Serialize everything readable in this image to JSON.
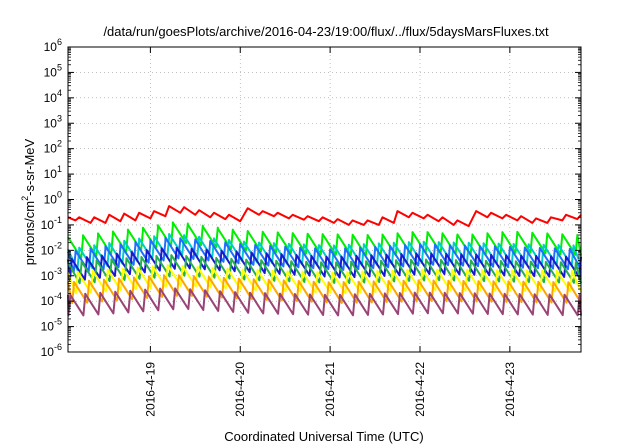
{
  "chart_data": {
    "type": "line",
    "title": "/data/run/goesPlots/archive/2016-04-23/19:00/flux/../flux/5daysMarsFluxes.txt",
    "xlabel": "Coordinated Universal Time (UTC)",
    "ylabel": {
      "prefix": "protons/cm",
      "sup": "2",
      "suffix": "-s-sr-MeV"
    },
    "yscale": "log",
    "ylim": [
      1e-06,
      1000000.0
    ],
    "yticks": [
      {
        "base": "10",
        "exp": "-6",
        "value": 1e-06
      },
      {
        "base": "10",
        "exp": "-5",
        "value": 1e-05
      },
      {
        "base": "10",
        "exp": "-4",
        "value": 0.0001
      },
      {
        "base": "10",
        "exp": "-3",
        "value": 0.001
      },
      {
        "base": "10",
        "exp": "-2",
        "value": 0.01
      },
      {
        "base": "10",
        "exp": "-1",
        "value": 0.1
      },
      {
        "base": "10",
        "exp": "0",
        "value": 1
      },
      {
        "base": "10",
        "exp": "1",
        "value": 10.0
      },
      {
        "base": "10",
        "exp": "2",
        "value": 100.0
      },
      {
        "base": "10",
        "exp": "3",
        "value": 1000.0
      },
      {
        "base": "10",
        "exp": "4",
        "value": 10000.0
      },
      {
        "base": "10",
        "exp": "5",
        "value": 100000.0
      },
      {
        "base": "10",
        "exp": "6",
        "value": 1000000.0
      }
    ],
    "xlim": [
      "2016-04-18T02:00",
      "2016-04-23T19:00"
    ],
    "xticks": [
      {
        "label": "2016-4-19",
        "value": "2016-04-19T00:00"
      },
      {
        "label": "2016-4-20",
        "value": "2016-04-20T00:00"
      },
      {
        "label": "2016-4-21",
        "value": "2016-04-21T00:00"
      },
      {
        "label": "2016-4-22",
        "value": "2016-04-22T00:00"
      },
      {
        "label": "2016-4-23",
        "value": "2016-04-23T00:00"
      }
    ],
    "grid": true,
    "legend": "none",
    "series": [
      {
        "color": "#ff0000",
        "sawtooth": false,
        "values": [
          [
            "2016-04-18T02:00",
            0.2
          ],
          [
            "2016-04-18T04:00",
            0.15
          ],
          [
            "2016-04-18T05:00",
            0.2
          ],
          [
            "2016-04-18T08:00",
            0.12
          ],
          [
            "2016-04-18T09:00",
            0.2
          ],
          [
            "2016-04-18T12:00",
            0.12
          ],
          [
            "2016-04-18T13:00",
            0.25
          ],
          [
            "2016-04-18T16:00",
            0.14
          ],
          [
            "2016-04-18T17:00",
            0.28
          ],
          [
            "2016-04-18T20:00",
            0.15
          ],
          [
            "2016-04-18T21:00",
            0.3
          ],
          [
            "2016-04-19T00:00",
            0.18
          ],
          [
            "2016-04-19T01:00",
            0.35
          ],
          [
            "2016-04-19T04:00",
            0.22
          ],
          [
            "2016-04-19T05:00",
            0.55
          ],
          [
            "2016-04-19T08:00",
            0.3
          ],
          [
            "2016-04-19T09:00",
            0.5
          ],
          [
            "2016-04-19T12:00",
            0.25
          ],
          [
            "2016-04-19T13:00",
            0.38
          ],
          [
            "2016-04-19T16:00",
            0.2
          ],
          [
            "2016-04-19T17:00",
            0.3
          ],
          [
            "2016-04-19T20:00",
            0.17
          ],
          [
            "2016-04-19T21:00",
            0.25
          ],
          [
            "2016-04-20T00:00",
            0.14
          ],
          [
            "2016-04-20T02:00",
            0.45
          ],
          [
            "2016-04-20T05:00",
            0.25
          ],
          [
            "2016-04-20T06:00",
            0.35
          ],
          [
            "2016-04-20T09:00",
            0.22
          ],
          [
            "2016-04-20T10:00",
            0.3
          ],
          [
            "2016-04-20T13:00",
            0.18
          ],
          [
            "2016-04-20T14:00",
            0.25
          ],
          [
            "2016-04-20T17:00",
            0.16
          ],
          [
            "2016-04-20T18:00",
            0.22
          ],
          [
            "2016-04-20T21:00",
            0.14
          ],
          [
            "2016-04-20T22:00",
            0.2
          ],
          [
            "2016-04-21T01:00",
            0.12
          ],
          [
            "2016-04-21T02:00",
            0.17
          ],
          [
            "2016-04-21T05:00",
            0.1
          ],
          [
            "2016-04-21T06:00",
            0.15
          ],
          [
            "2016-04-21T09:00",
            0.1
          ],
          [
            "2016-04-21T10:00",
            0.15
          ],
          [
            "2016-04-21T13:00",
            0.1
          ],
          [
            "2016-04-21T14:00",
            0.2
          ],
          [
            "2016-04-21T17:00",
            0.12
          ],
          [
            "2016-04-21T18:00",
            0.35
          ],
          [
            "2016-04-21T21:00",
            0.2
          ],
          [
            "2016-04-21T22:00",
            0.3
          ],
          [
            "2016-04-22T01:00",
            0.18
          ],
          [
            "2016-04-22T02:00",
            0.25
          ],
          [
            "2016-04-22T05:00",
            0.14
          ],
          [
            "2016-04-22T06:00",
            0.2
          ],
          [
            "2016-04-22T09:00",
            0.1
          ],
          [
            "2016-04-22T10:00",
            0.15
          ],
          [
            "2016-04-22T13:00",
            0.09
          ],
          [
            "2016-04-22T15:00",
            0.35
          ],
          [
            "2016-04-22T18:00",
            0.2
          ],
          [
            "2016-04-22T19:00",
            0.3
          ],
          [
            "2016-04-22T22:00",
            0.18
          ],
          [
            "2016-04-22T23:00",
            0.25
          ],
          [
            "2016-04-23T02:00",
            0.15
          ],
          [
            "2016-04-23T03:00",
            0.22
          ],
          [
            "2016-04-23T06:00",
            0.12
          ],
          [
            "2016-04-23T07:00",
            0.18
          ],
          [
            "2016-04-23T10:00",
            0.12
          ],
          [
            "2016-04-23T11:00",
            0.2
          ],
          [
            "2016-04-23T14:00",
            0.15
          ],
          [
            "2016-04-23T15:00",
            0.25
          ],
          [
            "2016-04-23T18:00",
            0.17
          ],
          [
            "2016-04-23T19:00",
            0.25
          ]
        ]
      },
      {
        "color": "#00ee00",
        "sawtooth": true,
        "phase": 0.0,
        "envelope": [
          [
            "2016-04-18T02:00",
            0.015
          ],
          [
            "2016-04-19T01:00",
            0.04
          ],
          [
            "2016-04-19T05:00",
            0.06
          ],
          [
            "2016-04-19T20:00",
            0.03
          ],
          [
            "2016-04-20T04:00",
            0.025
          ],
          [
            "2016-04-20T20:00",
            0.02
          ],
          [
            "2016-04-21T12:00",
            0.018
          ],
          [
            "2016-04-22T00:00",
            0.025
          ],
          [
            "2016-04-22T12:00",
            0.018
          ],
          [
            "2016-04-23T00:00",
            0.025
          ],
          [
            "2016-04-23T19:00",
            0.018
          ]
        ]
      },
      {
        "color": "#00cccc",
        "sawtooth": true,
        "phase": 0.25,
        "envelope": [
          [
            "2016-04-18T02:00",
            0.005
          ],
          [
            "2016-04-19T05:00",
            0.02
          ],
          [
            "2016-04-20T00:00",
            0.01
          ],
          [
            "2016-04-21T00:00",
            0.007
          ],
          [
            "2016-04-22T00:00",
            0.01
          ],
          [
            "2016-04-23T19:00",
            0.007
          ]
        ]
      },
      {
        "color": "#1e6fff",
        "sawtooth": true,
        "phase": 0.5,
        "envelope": [
          [
            "2016-04-18T02:00",
            0.004
          ],
          [
            "2016-04-19T05:00",
            0.015
          ],
          [
            "2016-04-20T00:00",
            0.008
          ],
          [
            "2016-04-21T00:00",
            0.005
          ],
          [
            "2016-04-22T00:00",
            0.008
          ],
          [
            "2016-04-23T19:00",
            0.005
          ]
        ]
      },
      {
        "color": "#1a1acc",
        "sawtooth": true,
        "phase": 0.75,
        "envelope": [
          [
            "2016-04-18T02:00",
            0.002
          ],
          [
            "2016-04-19T05:00",
            0.006
          ],
          [
            "2016-04-20T00:00",
            0.004
          ],
          [
            "2016-04-21T00:00",
            0.0025
          ],
          [
            "2016-04-22T00:00",
            0.0035
          ],
          [
            "2016-04-23T19:00",
            0.0025
          ]
        ]
      },
      {
        "color": "#22b14c",
        "sawtooth": true,
        "phase": 0.1,
        "envelope": [
          [
            "2016-04-18T02:00",
            0.0015
          ],
          [
            "2016-04-19T05:00",
            0.003
          ],
          [
            "2016-04-20T00:00",
            0.002
          ],
          [
            "2016-04-21T00:00",
            0.0015
          ],
          [
            "2016-04-22T00:00",
            0.002
          ],
          [
            "2016-04-23T19:00",
            0.0015
          ]
        ]
      },
      {
        "color": "#ffff00",
        "sawtooth": true,
        "phase": 0.35,
        "envelope": [
          [
            "2016-04-18T02:00",
            0.0006
          ],
          [
            "2016-04-19T05:00",
            0.0012
          ],
          [
            "2016-04-20T00:00",
            0.0008
          ],
          [
            "2016-04-21T00:00",
            0.0006
          ],
          [
            "2016-04-22T00:00",
            0.0008
          ],
          [
            "2016-04-23T19:00",
            0.0007
          ]
        ]
      },
      {
        "color": "#ffa500",
        "sawtooth": true,
        "phase": 0.6,
        "envelope": [
          [
            "2016-04-18T02:00",
            0.00025
          ],
          [
            "2016-04-19T05:00",
            0.0005
          ],
          [
            "2016-04-20T00:00",
            0.00035
          ],
          [
            "2016-04-21T00:00",
            0.00025
          ],
          [
            "2016-04-22T00:00",
            0.0003
          ],
          [
            "2016-04-23T19:00",
            0.00025
          ]
        ]
      },
      {
        "color": "#994477",
        "sawtooth": true,
        "phase": 0.85,
        "envelope": [
          [
            "2016-04-18T02:00",
            8e-05
          ],
          [
            "2016-04-19T05:00",
            0.00015
          ],
          [
            "2016-04-20T00:00",
            0.0001
          ],
          [
            "2016-04-21T00:00",
            8e-05
          ],
          [
            "2016-04-22T00:00",
            0.0001
          ],
          [
            "2016-04-23T19:00",
            8e-05
          ]
        ]
      }
    ]
  }
}
